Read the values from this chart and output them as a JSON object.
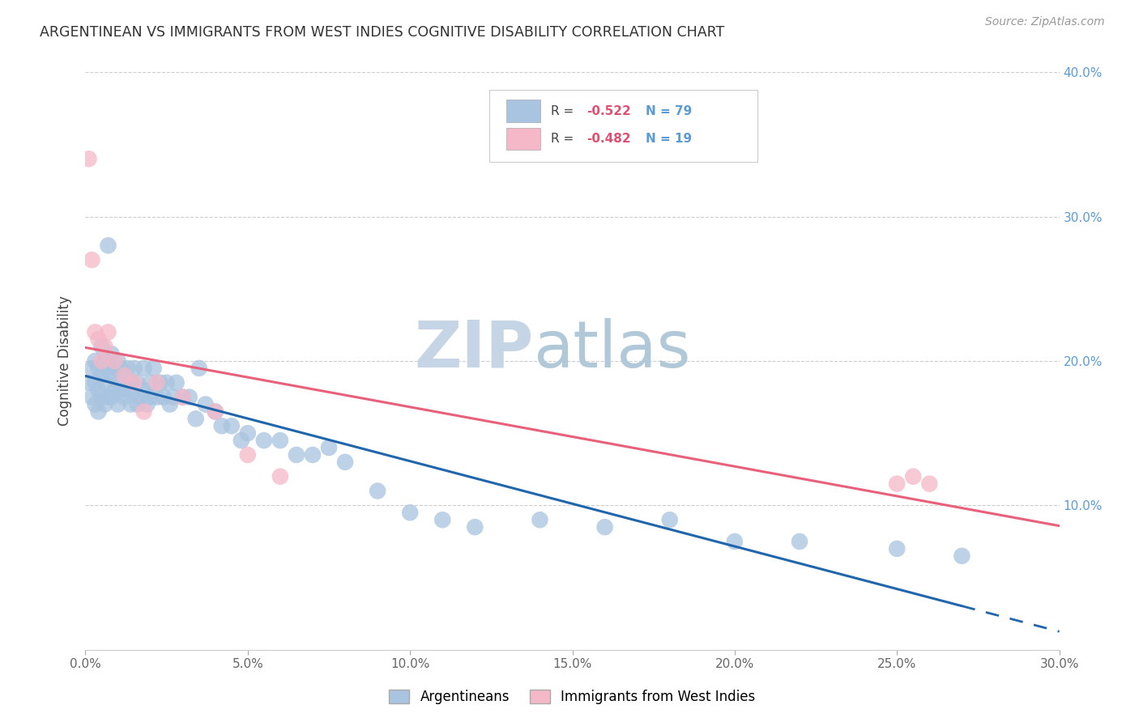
{
  "title": "ARGENTINEAN VS IMMIGRANTS FROM WEST INDIES COGNITIVE DISABILITY CORRELATION CHART",
  "source": "Source: ZipAtlas.com",
  "ylabel": "Cognitive Disability",
  "xlim": [
    0,
    0.3
  ],
  "ylim": [
    0,
    0.4
  ],
  "xticks": [
    0.0,
    0.05,
    0.1,
    0.15,
    0.2,
    0.25,
    0.3
  ],
  "yticks": [
    0.0,
    0.1,
    0.2,
    0.3,
    0.4
  ],
  "blue_color": "#a8c4e0",
  "pink_color": "#f4b8c8",
  "blue_line_color": "#2166ac",
  "pink_line_color": "#e8607a",
  "blue_r": "-0.522",
  "blue_n": "79",
  "pink_r": "-0.482",
  "pink_n": "19",
  "legend_label_blue": "Argentineans",
  "legend_label_pink": "Immigrants from West Indies",
  "background_color": "#ffffff",
  "grid_color": "#cccccc",
  "title_color": "#333333",
  "watermark_zip": "ZIP",
  "watermark_atlas": "atlas",
  "watermark_color_zip": "#c8d8e8",
  "watermark_color_atlas": "#b8ccd8",
  "blue_scatter_x": [
    0.001,
    0.002,
    0.002,
    0.003,
    0.003,
    0.003,
    0.004,
    0.004,
    0.004,
    0.005,
    0.005,
    0.005,
    0.006,
    0.006,
    0.006,
    0.007,
    0.007,
    0.007,
    0.008,
    0.008,
    0.008,
    0.009,
    0.009,
    0.01,
    0.01,
    0.01,
    0.011,
    0.011,
    0.012,
    0.012,
    0.013,
    0.013,
    0.014,
    0.014,
    0.015,
    0.015,
    0.016,
    0.016,
    0.017,
    0.018,
    0.018,
    0.019,
    0.02,
    0.02,
    0.021,
    0.022,
    0.023,
    0.024,
    0.025,
    0.026,
    0.027,
    0.028,
    0.03,
    0.032,
    0.034,
    0.035,
    0.037,
    0.04,
    0.042,
    0.045,
    0.048,
    0.05,
    0.055,
    0.06,
    0.065,
    0.07,
    0.075,
    0.08,
    0.09,
    0.1,
    0.11,
    0.12,
    0.14,
    0.16,
    0.18,
    0.2,
    0.22,
    0.25,
    0.27
  ],
  "blue_scatter_y": [
    0.185,
    0.195,
    0.175,
    0.2,
    0.185,
    0.17,
    0.195,
    0.18,
    0.165,
    0.21,
    0.19,
    0.175,
    0.2,
    0.185,
    0.17,
    0.195,
    0.28,
    0.175,
    0.205,
    0.19,
    0.175,
    0.195,
    0.18,
    0.2,
    0.185,
    0.17,
    0.195,
    0.18,
    0.19,
    0.175,
    0.195,
    0.18,
    0.185,
    0.17,
    0.195,
    0.18,
    0.185,
    0.17,
    0.175,
    0.195,
    0.18,
    0.17,
    0.185,
    0.175,
    0.195,
    0.175,
    0.185,
    0.175,
    0.185,
    0.17,
    0.175,
    0.185,
    0.175,
    0.175,
    0.16,
    0.195,
    0.17,
    0.165,
    0.155,
    0.155,
    0.145,
    0.15,
    0.145,
    0.145,
    0.135,
    0.135,
    0.14,
    0.13,
    0.11,
    0.095,
    0.09,
    0.085,
    0.09,
    0.085,
    0.09,
    0.075,
    0.075,
    0.07,
    0.065
  ],
  "pink_scatter_x": [
    0.001,
    0.002,
    0.003,
    0.004,
    0.005,
    0.006,
    0.007,
    0.009,
    0.012,
    0.015,
    0.018,
    0.022,
    0.03,
    0.04,
    0.05,
    0.06,
    0.25,
    0.255,
    0.26
  ],
  "pink_scatter_y": [
    0.34,
    0.27,
    0.22,
    0.215,
    0.2,
    0.21,
    0.22,
    0.2,
    0.19,
    0.185,
    0.165,
    0.185,
    0.175,
    0.165,
    0.135,
    0.12,
    0.115,
    0.12,
    0.115
  ]
}
